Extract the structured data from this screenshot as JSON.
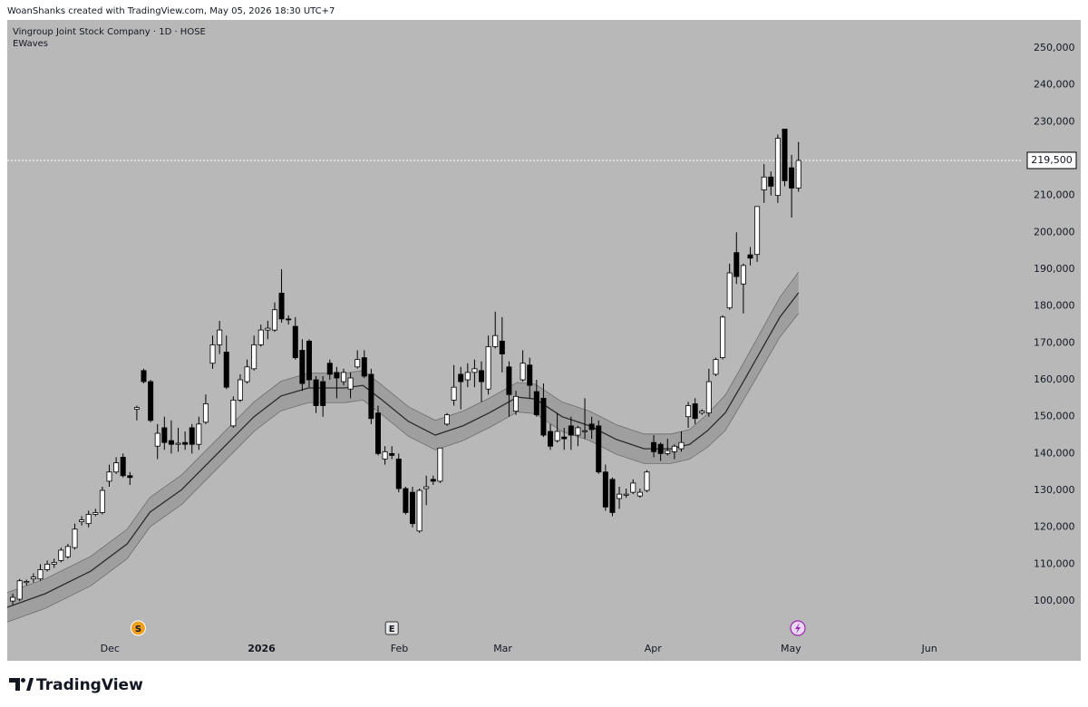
{
  "attribution": "WoanShanks created with TradingView.com, May 05, 2026 18:30 UTC+7",
  "brand": "TradingView",
  "chart_data": {
    "type": "candlestick",
    "title": "Vingroup Joint Stock Company · 1D · HOSE",
    "indicator": "EWaves",
    "open": [
      100000,
      100500,
      105000,
      106000,
      106000,
      108500,
      110000,
      111000,
      112000,
      114500,
      121500,
      121000,
      123500,
      124000,
      132500,
      135000,
      139000,
      134000,
      152000,
      162500,
      159500,
      142000,
      147000,
      143500,
      142500,
      143000,
      147000,
      142500,
      148500,
      164500,
      169500,
      167500,
      147500,
      154500,
      159500,
      163000,
      169500,
      173500,
      173500,
      183500,
      176500,
      174500,
      168000,
      170500,
      160000,
      159500,
      164500,
      162000,
      159500,
      157500,
      163500,
      166000,
      161500,
      151000,
      138500,
      140000,
      138500,
      130500,
      129500,
      119000,
      130500,
      133000,
      132500,
      148000,
      154500,
      161500,
      160000,
      162000,
      162500,
      157500,
      169000,
      170500,
      163500,
      151500,
      160000,
      164000,
      156800,
      155000,
      146000,
      143500,
      144500,
      147500,
      145000,
      146000,
      148000,
      147500,
      135000,
      133000,
      127800,
      128700,
      129500,
      128500,
      130000,
      143000,
      142500,
      140000,
      140500,
      141300,
      150000,
      153500,
      151000,
      151000,
      161500,
      166000,
      179500,
      194500,
      186000,
      193900,
      194000,
      211500,
      215000,
      210000,
      228000,
      217500,
      212000
    ],
    "high": [
      102000,
      106000,
      105800,
      107500,
      110000,
      111000,
      111500,
      114500,
      115500,
      121000,
      123000,
      124500,
      125000,
      131000,
      137000,
      139000,
      140000,
      135000,
      153000,
      163000,
      160000,
      148000,
      150000,
      149000,
      147000,
      146000,
      148000,
      150000,
      156000,
      172000,
      176000,
      172000,
      155500,
      161500,
      165500,
      172000,
      175000,
      176000,
      181000,
      190000,
      177500,
      177000,
      171000,
      171000,
      161000,
      161000,
      165500,
      163500,
      163000,
      162000,
      168000,
      168000,
      163000,
      153000,
      142000,
      142000,
      140000,
      131000,
      131000,
      130500,
      134000,
      134000,
      141500,
      151000,
      164000,
      163500,
      164500,
      165500,
      165000,
      172000,
      178500,
      177000,
      165000,
      157000,
      168000,
      166000,
      160000,
      159000,
      148000,
      151000,
      147000,
      150000,
      147500,
      155000,
      150000,
      149000,
      137000,
      133500,
      131000,
      130500,
      133000,
      130500,
      135500,
      145000,
      143000,
      144000,
      142500,
      146000,
      154000,
      155000,
      152000,
      163000,
      166000,
      177500,
      191500,
      200000,
      191500,
      196000,
      207000,
      218500,
      216500,
      226500,
      228000,
      221000,
      224500
    ],
    "low": [
      99000,
      100000,
      104200,
      105000,
      105500,
      108000,
      109000,
      110500,
      111500,
      114000,
      120500,
      120000,
      123000,
      123500,
      131000,
      134500,
      133500,
      131500,
      149000,
      159000,
      148500,
      138500,
      141000,
      140000,
      140500,
      141000,
      140000,
      141000,
      148000,
      163000,
      167000,
      157500,
      147000,
      154000,
      159000,
      162500,
      169000,
      171000,
      173000,
      175500,
      175000,
      165500,
      157000,
      158000,
      151000,
      150000,
      160000,
      155000,
      158500,
      155000,
      163000,
      160500,
      148000,
      139500,
      137000,
      138500,
      129500,
      123500,
      120000,
      118500,
      126000,
      131500,
      132000,
      147500,
      153000,
      152000,
      158000,
      158000,
      154000,
      156000,
      168500,
      162000,
      150000,
      150500,
      159500,
      155000,
      150000,
      144500,
      141000,
      143000,
      141000,
      141000,
      142000,
      144000,
      144000,
      134500,
      124500,
      123000,
      125000,
      128000,
      129000,
      128000,
      129500,
      139000,
      138000,
      139500,
      138500,
      140500,
      147000,
      148000,
      150500,
      150000,
      161000,
      165500,
      179000,
      186000,
      178000,
      191000,
      192000,
      208000,
      210000,
      208000,
      212500,
      204000,
      211000
    ],
    "close": [
      101000,
      105500,
      105300,
      106500,
      108500,
      110000,
      110500,
      113800,
      114800,
      119500,
      122000,
      123500,
      124000,
      130000,
      135000,
      137500,
      134000,
      133500,
      152500,
      159500,
      149000,
      145500,
      143000,
      142500,
      142800,
      142500,
      142500,
      148000,
      153500,
      169500,
      173500,
      158000,
      154500,
      160000,
      163500,
      169500,
      173500,
      174000,
      179000,
      176500,
      176300,
      166000,
      159000,
      160000,
      153000,
      153000,
      161500,
      160500,
      162000,
      160500,
      165500,
      161000,
      149500,
      140000,
      140500,
      139500,
      130500,
      124000,
      121000,
      130000,
      131000,
      132500,
      141500,
      150500,
      158000,
      159500,
      162000,
      163000,
      159500,
      169000,
      172000,
      167000,
      156000,
      155500,
      164500,
      158500,
      150500,
      145000,
      142000,
      146000,
      144000,
      145000,
      147000,
      146200,
      146500,
      135000,
      125500,
      124000,
      129000,
      129000,
      132000,
      129500,
      135000,
      140500,
      140000,
      140800,
      142000,
      143000,
      153000,
      149500,
      151500,
      159500,
      165500,
      177000,
      189000,
      188000,
      191000,
      193000,
      207000,
      215000,
      212500,
      225500,
      214000,
      212000,
      219500
    ],
    "up_color": "#ffffff",
    "down_color": "#000000",
    "band": {
      "x": [
        -0.8,
        4.7,
        11.3,
        16.6,
        19.9,
        24.5,
        29.7,
        35,
        38.9,
        42.9,
        48.2,
        50.8,
        53.4,
        57.4,
        61.3,
        65.3,
        69.2,
        73.2,
        75.8,
        79.7,
        83.7,
        87.6,
        91.6,
        95.5,
        98.2,
        100.8,
        103.4,
        106.1,
        108.7,
        111.3,
        114
      ],
      "middle": [
        98300,
        102000,
        108100,
        115500,
        124100,
        130200,
        140000,
        150000,
        155600,
        157800,
        157800,
        158500,
        154800,
        148700,
        145000,
        147500,
        151100,
        155300,
        154800,
        150000,
        147500,
        143800,
        141300,
        141300,
        142500,
        146200,
        151100,
        159800,
        168400,
        177000,
        183600
      ],
      "upper": [
        102300,
        106000,
        112100,
        119500,
        128100,
        134200,
        144000,
        154000,
        159600,
        161800,
        161800,
        162500,
        158800,
        152700,
        149000,
        151500,
        155100,
        159300,
        158800,
        154000,
        151500,
        147800,
        145300,
        145300,
        146500,
        150700,
        155900,
        164800,
        173600,
        182400,
        189200
      ],
      "lower": [
        94300,
        98000,
        104100,
        111500,
        120100,
        126200,
        136000,
        146000,
        151600,
        153800,
        153800,
        154500,
        150800,
        144700,
        141000,
        143500,
        147100,
        151300,
        150800,
        146000,
        143500,
        139800,
        137300,
        137300,
        138500,
        141700,
        146300,
        154800,
        163200,
        171600,
        178000
      ],
      "line_color": "#2b2b2b",
      "fill_color": "#8a8a8a"
    },
    "last_price": {
      "value": 219500,
      "label": "219,500"
    },
    "xlim": [
      -0.8,
      146.4
    ],
    "ylim": [
      89700,
      257600
    ],
    "yticks": [
      {
        "value": 100000,
        "label": "100,000"
      },
      {
        "value": 110000,
        "label": "110,000"
      },
      {
        "value": 120000,
        "label": "120,000"
      },
      {
        "value": 130000,
        "label": "130,000"
      },
      {
        "value": 140000,
        "label": "140,000"
      },
      {
        "value": 150000,
        "label": "150,000"
      },
      {
        "value": 160000,
        "label": "160,000"
      },
      {
        "value": 170000,
        "label": "170,000"
      },
      {
        "value": 180000,
        "label": "180,000"
      },
      {
        "value": 190000,
        "label": "190,000"
      },
      {
        "value": 200000,
        "label": "200,000"
      },
      {
        "value": 210000,
        "label": "210,000"
      },
      {
        "value": 220000,
        "label": "220,000"
      },
      {
        "value": 230000,
        "label": "230,000"
      },
      {
        "value": 240000,
        "label": "240,000"
      },
      {
        "value": 250000,
        "label": "250,000"
      }
    ],
    "xticks": [
      {
        "value": 14.1,
        "label": "Dec"
      },
      {
        "value": 36.1,
        "label": "2026"
      },
      {
        "value": 56.1,
        "label": "Feb"
      },
      {
        "value": 71.1,
        "label": "Mar"
      },
      {
        "value": 92.9,
        "label": "Apr"
      },
      {
        "value": 112.9,
        "label": "May"
      },
      {
        "value": 133,
        "label": "Jun"
      }
    ],
    "events": [
      {
        "x": 18.2,
        "label": "S",
        "color": "#f0a020"
      },
      {
        "x": 55,
        "label": "E",
        "color": "#e6e6e6"
      }
    ],
    "background": "#b8b8b8"
  }
}
